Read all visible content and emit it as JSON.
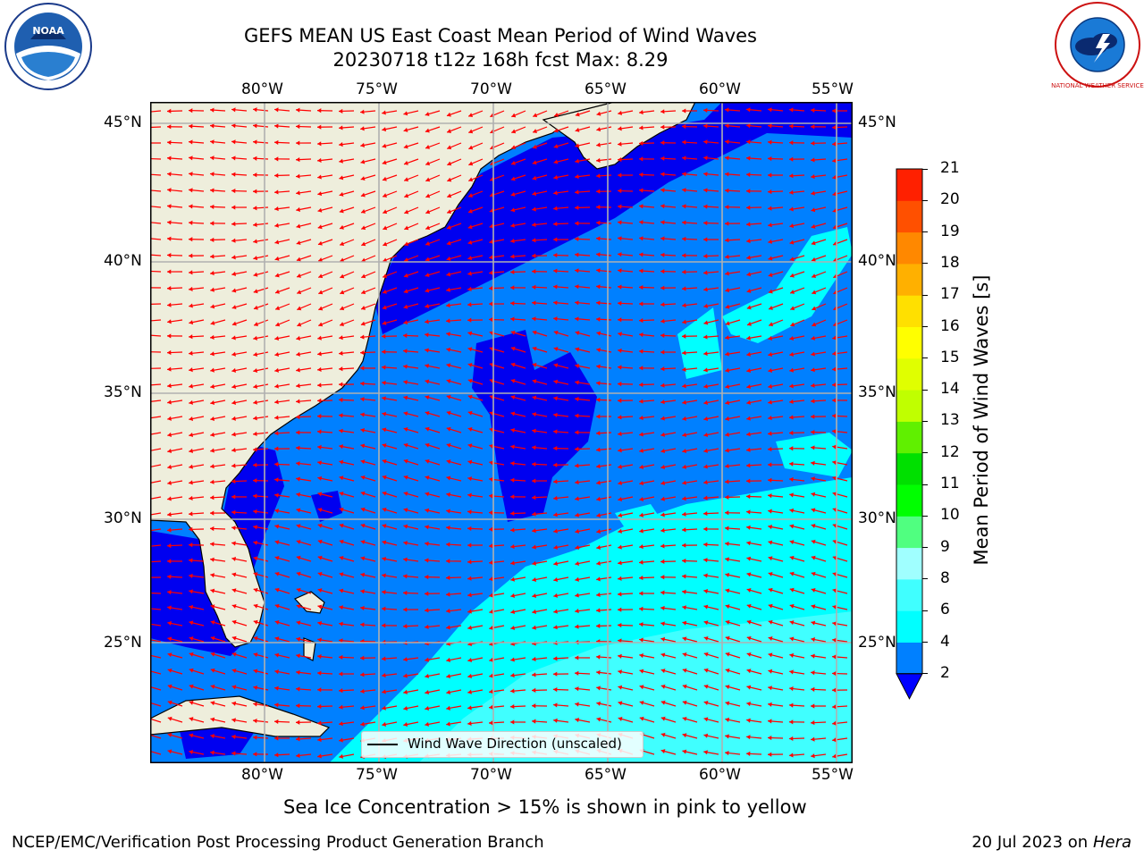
{
  "header": {
    "title_line1": "GEFS MEAN US East Coast Mean Period of Wind Waves",
    "title_line2": "20230718 t12z 168h fcst   Max: 8.29"
  },
  "logos": {
    "left": {
      "icon": "noaa-logo",
      "text": "NOAA"
    },
    "right": {
      "icon": "nws-logo",
      "text": "NATIONAL WEATHER SERVICE"
    }
  },
  "map": {
    "lon_labels": [
      "80°W",
      "75°W",
      "70°W",
      "65°W",
      "60°W",
      "55°W"
    ],
    "lat_labels": [
      "45°N",
      "40°N",
      "35°N",
      "30°N",
      "25°N"
    ],
    "legend_label": "Wind Wave Direction (unscaled)",
    "colors": {
      "land": "#eeeedc",
      "period_2_4": "#0080ff",
      "period_below_2": "#0000f0",
      "period_4_6": "#00ffff",
      "period_6_8": "#40ffff",
      "arrows": "#ff0000",
      "grid": "#b0b0b0"
    }
  },
  "colorbar": {
    "label": "Mean Period of Wind Waves [s]",
    "ticks": [
      "2",
      "4",
      "6",
      "8",
      "9",
      "10",
      "11",
      "12",
      "13",
      "14",
      "15",
      "16",
      "17",
      "18",
      "19",
      "20",
      "21"
    ],
    "colors": [
      "#0080ff",
      "#00ffff",
      "#40ffff",
      "#a0ffff",
      "#50ff80",
      "#00ff00",
      "#00e000",
      "#60f000",
      "#c0ff00",
      "#e0ff00",
      "#ffff00",
      "#ffe000",
      "#ffb000",
      "#ff8800",
      "#ff5000",
      "#ff2000"
    ],
    "extend_color": "#0000ff"
  },
  "caption": "Sea Ice Concentration > 15% is shown in pink to yellow",
  "footer": {
    "left": "NCEP/EMC/Verification Post Processing Product Generation Branch",
    "date": "20 Jul 2023 on",
    "machine": "Hera"
  }
}
